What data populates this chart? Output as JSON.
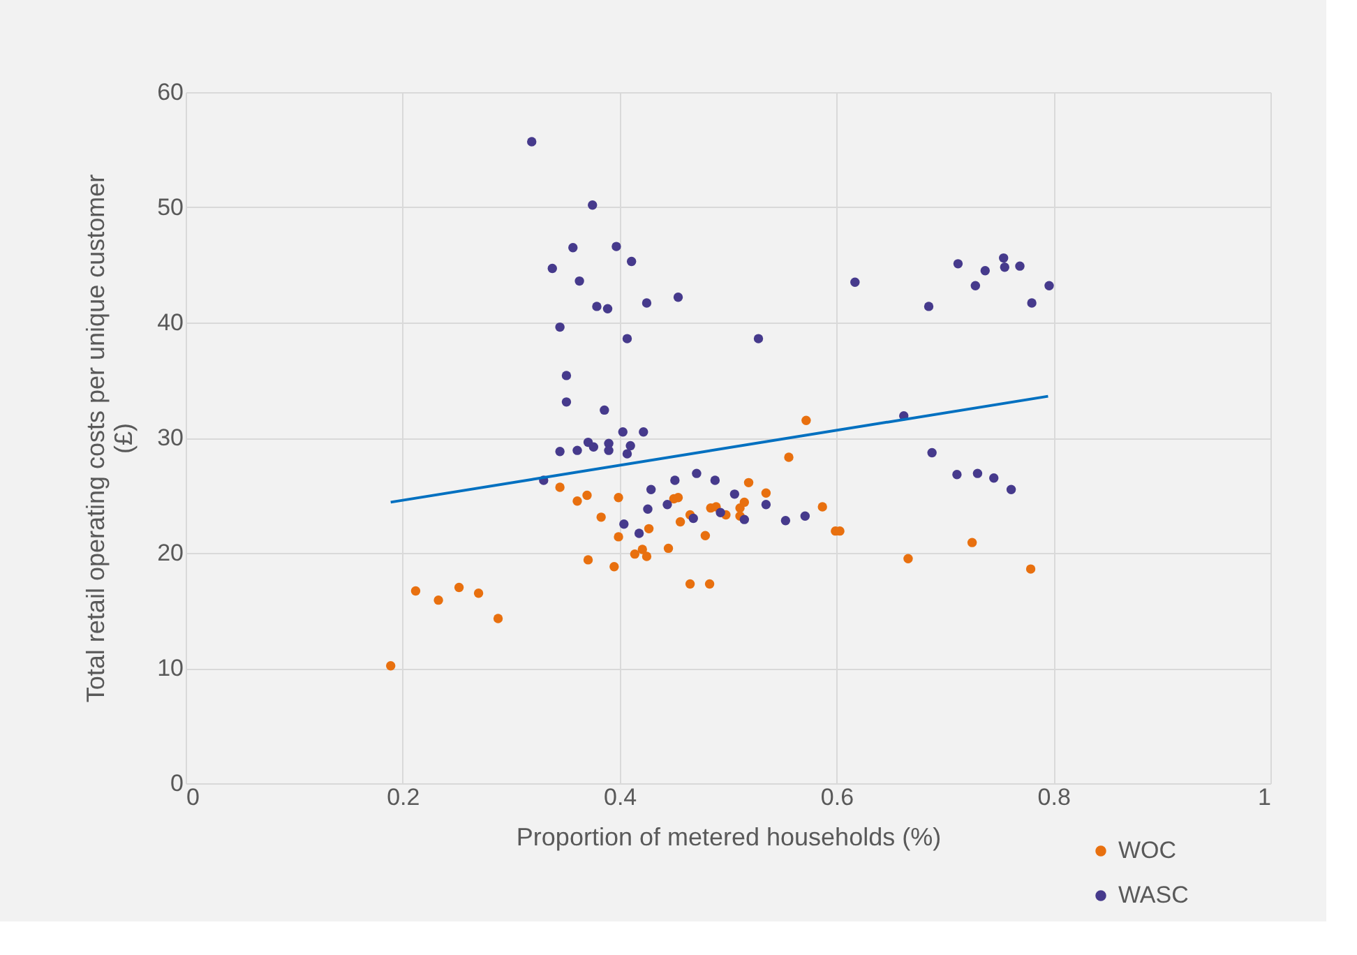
{
  "chart_data": {
    "type": "scatter",
    "xlabel": "Proportion of metered households (%)",
    "ylabel": "Total retail operating costs per unique customer (£)",
    "xlim": [
      0,
      1
    ],
    "ylim": [
      0,
      60
    ],
    "xticks": [
      0,
      0.2,
      0.4,
      0.6,
      0.8,
      1
    ],
    "yticks": [
      0,
      10,
      20,
      30,
      40,
      50,
      60
    ],
    "grid": true,
    "legend": "bottom right",
    "marker": "circle",
    "series": [
      {
        "name": "WOC",
        "color": "#e8700f",
        "x": [
          0.189,
          0.212,
          0.233,
          0.252,
          0.27,
          0.288,
          0.345,
          0.361,
          0.37,
          0.383,
          0.371,
          0.399,
          0.399,
          0.395,
          0.414,
          0.421,
          0.425,
          0.427,
          0.445,
          0.45,
          0.454,
          0.456,
          0.465,
          0.465,
          0.483,
          0.479,
          0.484,
          0.489,
          0.498,
          0.511,
          0.515,
          0.511,
          0.519,
          0.535,
          0.556,
          0.572,
          0.587,
          0.599,
          0.603,
          0.666,
          0.725,
          0.779
        ],
        "values": [
          10.2,
          16.7,
          15.9,
          17.0,
          16.5,
          14.3,
          25.7,
          24.5,
          25.0,
          23.1,
          19.4,
          24.8,
          21.4,
          18.8,
          19.9,
          20.3,
          19.7,
          22.1,
          20.4,
          24.7,
          24.8,
          22.7,
          23.3,
          17.3,
          17.3,
          21.5,
          23.9,
          24.0,
          23.3,
          23.9,
          24.4,
          23.2,
          26.1,
          25.2,
          28.3,
          31.5,
          24.0,
          21.9,
          21.9,
          19.5,
          20.9,
          18.6
        ]
      },
      {
        "name": "WASC",
        "color": "#463a8c",
        "x": [
          0.319,
          0.375,
          0.357,
          0.397,
          0.411,
          0.338,
          0.363,
          0.379,
          0.389,
          0.425,
          0.454,
          0.345,
          0.407,
          0.528,
          0.351,
          0.351,
          0.386,
          0.403,
          0.422,
          0.371,
          0.376,
          0.39,
          0.39,
          0.41,
          0.407,
          0.345,
          0.361,
          0.33,
          0.429,
          0.451,
          0.471,
          0.488,
          0.506,
          0.535,
          0.426,
          0.444,
          0.404,
          0.418,
          0.468,
          0.493,
          0.515,
          0.553,
          0.571,
          0.617,
          0.685,
          0.712,
          0.728,
          0.737,
          0.754,
          0.755,
          0.769,
          0.78,
          0.796,
          0.662,
          0.688,
          0.711,
          0.73,
          0.745,
          0.761
        ],
        "values": [
          55.7,
          50.2,
          46.5,
          46.6,
          45.3,
          44.7,
          43.6,
          41.4,
          41.2,
          41.7,
          42.2,
          39.6,
          38.6,
          38.6,
          35.4,
          33.1,
          32.4,
          30.5,
          30.5,
          29.6,
          29.2,
          29.5,
          28.9,
          29.3,
          28.6,
          28.8,
          28.9,
          26.3,
          25.5,
          26.3,
          26.9,
          26.3,
          25.1,
          24.2,
          23.8,
          24.2,
          22.5,
          21.7,
          23.0,
          23.5,
          22.9,
          22.8,
          23.2,
          43.5,
          41.4,
          45.1,
          43.2,
          44.5,
          45.6,
          44.8,
          44.9,
          41.7,
          43.2,
          31.9,
          28.7,
          26.8,
          26.9,
          26.5,
          25.5
        ]
      },
      {
        "type": "line",
        "marker": "none",
        "color": "#0070c0",
        "x": [
          0.189,
          0.795
        ],
        "values": [
          24.4,
          33.6
        ]
      }
    ]
  }
}
